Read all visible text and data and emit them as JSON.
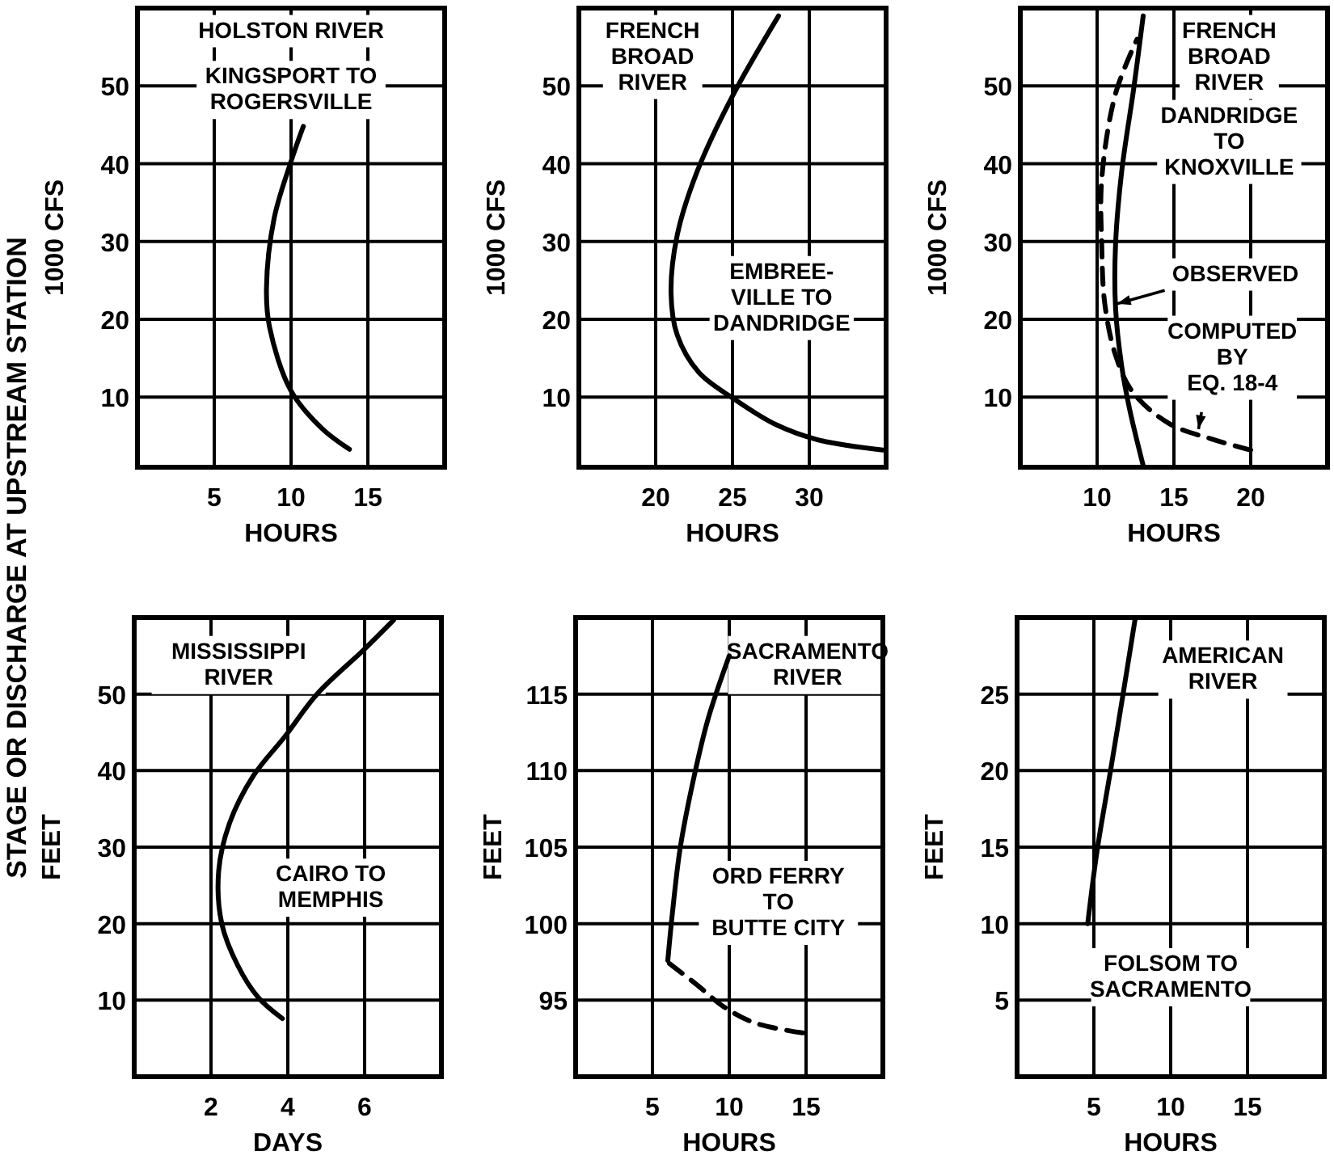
{
  "chart_data": [
    {
      "type": "line",
      "title": "HOLSTON RIVER",
      "subtitle": "KINGSPORT TO\nROGERSVILLE",
      "xlabel": "HOURS",
      "ylabel": "1000 CFS",
      "xlim": [
        0,
        20
      ],
      "ylim": [
        1,
        60
      ],
      "xticks": [
        5,
        10,
        15
      ],
      "yticks": [
        10,
        20,
        30,
        40,
        50
      ],
      "grid": true,
      "annotations": [
        "STAGE OR DISCHARGE AT UPSTREAM STATION"
      ],
      "series": [
        {
          "color": "#000000",
          "line_style": "solid",
          "x": [
            13.8,
            12,
            10,
            8.6,
            8.4,
            8.9,
            10,
            10.8
          ],
          "values": [
            3.3,
            6,
            10.8,
            19,
            24,
            33,
            40.3,
            44.8
          ]
        }
      ]
    },
    {
      "type": "line",
      "title": "FRENCH\nBROAD\nRIVER",
      "subtitle": "EMBREE-\nVILLE TO\nDANDRIDGE",
      "xlabel": "HOURS",
      "ylabel": "1000 CFS",
      "xlim": [
        15,
        35
      ],
      "ylim": [
        1,
        60
      ],
      "xticks": [
        20,
        25,
        30
      ],
      "yticks": [
        10,
        20,
        30,
        40,
        50
      ],
      "grid": true,
      "series": [
        {
          "color": "#000000",
          "line_style": "solid",
          "x": [
            34.8,
            30.6,
            27.8,
            25,
            22.8,
            21.4,
            21,
            21.4,
            22.7,
            25,
            28
          ],
          "values": [
            3.2,
            4.5,
            6.5,
            9.9,
            13.2,
            18,
            23.4,
            30.8,
            39,
            48.7,
            59
          ]
        }
      ]
    },
    {
      "type": "line",
      "title": "FRENCH\nBROAD\nRIVER",
      "subtitle": "DANDRIDGE\nTO\nKNOXVILLE",
      "xlabel": "HOURS",
      "ylabel": "1000 CFS",
      "xlim": [
        5,
        25
      ],
      "ylim": [
        1,
        60
      ],
      "xticks": [
        10,
        15,
        20
      ],
      "yticks": [
        10,
        20,
        30,
        40,
        50
      ],
      "grid": true,
      "annotations": [
        {
          "text": "OBSERVED",
          "x": 11.3,
          "y": 22
        },
        {
          "text": "COMPUTED\nBY\nEQ. 18-4",
          "x": 16.6,
          "y": 5.9
        }
      ],
      "series": [
        {
          "color": "#000000",
          "line_style": "solid",
          "x": [
            13,
            12.1,
            11.6,
            11.2,
            11.2,
            11.6,
            12.4,
            13
          ],
          "values": [
            1.2,
            8.6,
            14,
            21.5,
            29.6,
            39,
            49.9,
            59
          ]
        },
        {
          "color": "#000000",
          "line_style": "dashed",
          "x": [
            20,
            17.5,
            14.7,
            12.3,
            11.2,
            10.5,
            10.3,
            10.3,
            11.2,
            12.6
          ],
          "values": [
            3.2,
            4.6,
            6.6,
            10.7,
            15.4,
            22,
            29.6,
            38,
            49,
            56
          ]
        }
      ]
    },
    {
      "type": "line",
      "title": "MISSISSIPPI\nRIVER",
      "subtitle": "CAIRO TO\nMEMPHIS",
      "xlabel": "DAYS",
      "ylabel": "FEET",
      "xlim": [
        0,
        8
      ],
      "ylim": [
        0,
        60
      ],
      "xticks": [
        2,
        4,
        6
      ],
      "yticks": [
        10,
        20,
        30,
        40,
        50
      ],
      "grid": true,
      "series": [
        {
          "color": "#000000",
          "line_style": "solid",
          "x": [
            3.86,
            3.24,
            2.7,
            2.28,
            2.2,
            2.48,
            3.1,
            3.93,
            4.76,
            6,
            6.76
          ],
          "values": [
            7.6,
            10.3,
            14.5,
            20,
            26.9,
            33.1,
            39.3,
            44.5,
            50,
            55.9,
            59.7
          ]
        }
      ]
    },
    {
      "type": "line",
      "title": "SACRAMENTO\nRIVER",
      "subtitle": "ORD FERRY\nTO\nBUTTE CITY",
      "xlabel": "HOURS",
      "ylabel": "FEET",
      "xlim": [
        0,
        20
      ],
      "ylim": [
        90,
        120
      ],
      "xticks": [
        5,
        10,
        15
      ],
      "yticks": [
        95,
        100,
        105,
        110,
        115
      ],
      "grid": true,
      "series": [
        {
          "color": "#000000",
          "line_style": "solid",
          "x": [
            6,
            6.3,
            6.8,
            7.6,
            8.6,
            10
          ],
          "values": [
            97.6,
            100.7,
            104.9,
            109.1,
            113.3,
            117.5
          ]
        },
        {
          "color": "#000000",
          "line_style": "dashed",
          "x": [
            6.1,
            7.9,
            9.6,
            11.7,
            15.2
          ],
          "values": [
            97.4,
            96,
            94.6,
            93.5,
            92.8
          ]
        }
      ]
    },
    {
      "type": "line",
      "title": "AMERICAN\nRIVER",
      "subtitle": "FOLSOM TO\nSACRAMENTO",
      "xlabel": "HOURS",
      "ylabel": "FEET",
      "xlim": [
        0,
        20
      ],
      "ylim": [
        0,
        30
      ],
      "xticks": [
        5,
        10,
        15
      ],
      "yticks": [
        5,
        10,
        15,
        20,
        25
      ],
      "grid": true,
      "series": [
        {
          "color": "#000000",
          "line_style": "solid",
          "x": [
            4.6,
            5.2,
            6.1,
            6.9,
            7.7
          ],
          "values": [
            10,
            14.7,
            20.1,
            25,
            30
          ]
        }
      ]
    }
  ]
}
